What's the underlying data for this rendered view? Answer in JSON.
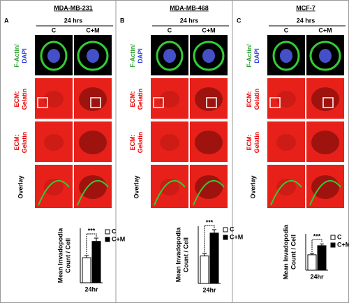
{
  "panels": [
    {
      "label": "A",
      "cell_line": "MDA-MB-231",
      "time": "24 hrs",
      "conditions": [
        "C",
        "C+M"
      ]
    },
    {
      "label": "B",
      "cell_line": "MDA-MB-468",
      "time": "24 hrs",
      "conditions": [
        "C",
        "C+M"
      ]
    },
    {
      "label": "C",
      "cell_line": "MCF-7",
      "time": "24 hrs",
      "conditions": [
        "C",
        "C+M"
      ]
    }
  ],
  "row_labels": [
    [
      "F-Actin/",
      "DAPI"
    ],
    [
      "ECM:",
      "Gelatin"
    ],
    [
      "ECM:",
      "Gelatin"
    ],
    [
      "Overlay"
    ]
  ],
  "chart_data": [
    {
      "type": "bar",
      "categories": [
        "24hr"
      ],
      "ylabel": [
        "Mean  Invadopodia",
        "Count / Cell"
      ],
      "ylim": [
        0,
        50
      ],
      "annotation": "***",
      "series": [
        {
          "name": "C",
          "color": "#ffffff",
          "values": [
            23
          ],
          "errors": [
            2
          ]
        },
        {
          "name": "C+M",
          "color": "#000000",
          "values": [
            38
          ],
          "errors": [
            3
          ]
        }
      ]
    },
    {
      "type": "bar",
      "categories": [
        "24hr"
      ],
      "ylabel": [
        "Mean  Invadopodia",
        "Count / Cell"
      ],
      "ylim": [
        0,
        50
      ],
      "annotation": "***",
      "series": [
        {
          "name": "C",
          "color": "#ffffff",
          "values": [
            24
          ],
          "errors": [
            2
          ]
        },
        {
          "name": "C+M",
          "color": "#000000",
          "values": [
            44
          ],
          "errors": [
            3
          ]
        }
      ]
    },
    {
      "type": "bar",
      "categories": [
        "24hr"
      ],
      "ylabel": [
        "Mean  Invadopodia",
        "Count / Cell"
      ],
      "ylim": [
        0,
        40
      ],
      "annotation": "***",
      "series": [
        {
          "name": "C",
          "color": "#ffffff",
          "values": [
            17
          ],
          "errors": [
            1.5
          ]
        },
        {
          "name": "C+M",
          "color": "#000000",
          "values": [
            27
          ],
          "errors": [
            2
          ]
        }
      ]
    }
  ]
}
